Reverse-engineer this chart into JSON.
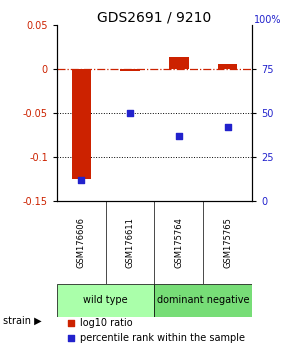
{
  "title": "GDS2691 / 9210",
  "samples": [
    "GSM176606",
    "GSM176611",
    "GSM175764",
    "GSM175765"
  ],
  "log10_ratio": [
    -0.125,
    -0.002,
    0.013,
    0.005
  ],
  "percentile_rank": [
    12,
    50,
    37,
    42
  ],
  "groups": [
    {
      "label": "wild type",
      "samples": [
        0,
        1
      ],
      "color": "#aaffaa"
    },
    {
      "label": "dominant negative",
      "samples": [
        2,
        3
      ],
      "color": "#77dd77"
    }
  ],
  "ylim_left": [
    -0.15,
    0.05
  ],
  "ylim_right": [
    0,
    100
  ],
  "yticks_left": [
    0.05,
    0,
    -0.05,
    -0.1,
    -0.15
  ],
  "ytick_labels_left": [
    "0.05",
    "0",
    "-0.05",
    "-0.1",
    "-0.15"
  ],
  "yticks_right": [
    75,
    50,
    25,
    0
  ],
  "ytick_labels_right": [
    "75",
    "50",
    "25",
    "0"
  ],
  "bar_color": "#cc2200",
  "dot_color": "#2222cc",
  "bg_color": "#ffffff",
  "sample_box_color": "#cccccc",
  "strain_label": "strain",
  "legend_ratio_label": "log10 ratio",
  "legend_pct_label": "percentile rank within the sample",
  "title_fontsize": 10,
  "tick_fontsize": 7,
  "sample_fontsize": 6,
  "group_fontsize": 7,
  "legend_fontsize": 7,
  "bar_width": 0.4
}
